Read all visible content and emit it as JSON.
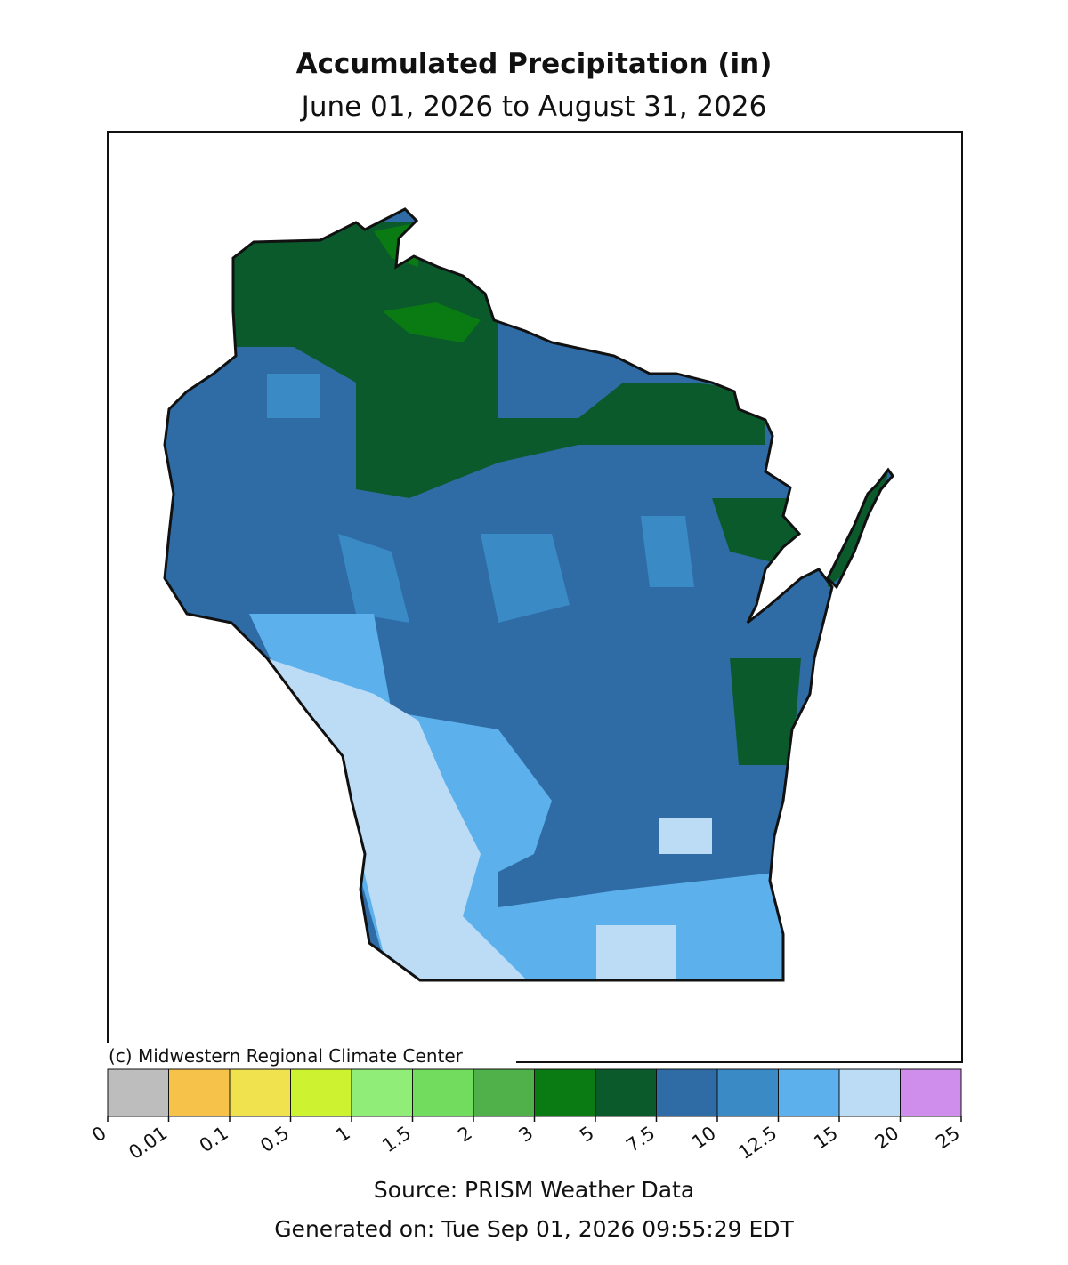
{
  "title": "Accumulated Precipitation (in)",
  "subtitle": "June 01, 2026 to August 31, 2026",
  "credit": "(c) Midwestern Regional Climate Center",
  "legend": {
    "boundaries": [
      0,
      0.01,
      0.1,
      0.5,
      1,
      1.5,
      2,
      3,
      5,
      7.5,
      10,
      12.5,
      15,
      20,
      25
    ],
    "colors": [
      "#bdbdbd",
      "#f7c24a",
      "#efe24e",
      "#cdf230",
      "#90ee78",
      "#72dc5e",
      "#50b04a",
      "#0a7a12",
      "#0b5a2c",
      "#2f6ca6",
      "#3a8ac6",
      "#5cb0ec",
      "#bcdcf6",
      "#cf8eec"
    ]
  },
  "source": "Source: PRISM Weather Data",
  "generated": "Generated on: Tue Sep 01, 2026 09:55:29 EDT"
}
